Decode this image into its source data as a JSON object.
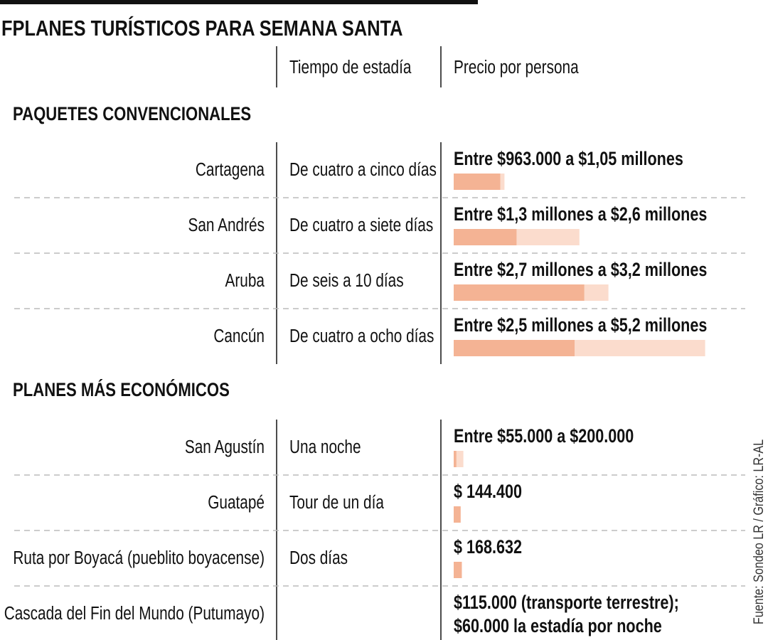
{
  "title": "FPLANES TURÍSTICOS PARA SEMANA SANTA",
  "header": {
    "stay": "Tiempo de estadía",
    "price": "Precio por persona"
  },
  "colors": {
    "low": "#f4b394",
    "high": "#fbdccd"
  },
  "sections": [
    {
      "title": "PAQUETES CONVENCIONALES",
      "rows": [
        {
          "place": "Cartagena",
          "stay": "De cuatro a cinco días",
          "price_label": [
            "Entre  $963.000 a $1,05 millones"
          ],
          "low": 963000,
          "high": 1050000
        },
        {
          "place": "San Andrés",
          "stay": "De cuatro a siete días",
          "price_label": [
            "Entre $1,3 millones a $2,6 millones"
          ],
          "low": 1300000,
          "high": 2600000
        },
        {
          "place": "Aruba",
          "stay": "De seis a 10 días",
          "price_label": [
            "Entre $2,7 millones a $3,2 millones"
          ],
          "low": 2700000,
          "high": 3200000
        },
        {
          "place": "Cancún",
          "stay": "De cuatro a ocho días",
          "price_label": [
            "Entre $2,5 millones a $5,2 millones"
          ],
          "low": 2500000,
          "high": 5200000
        }
      ]
    },
    {
      "title": "PLANES MÁS ECONÓMICOS",
      "rows": [
        {
          "place": "San Agustín",
          "stay": "Una noche",
          "price_label": [
            "Entre $55.000 a $200.000"
          ],
          "low": 55000,
          "high": 200000
        },
        {
          "place": "Guatapé",
          "stay": "Tour de un día",
          "price_label": [
            "$ 144.400"
          ],
          "low": 144400
        },
        {
          "place": "Ruta por Boyacá (pueblito boyacense)",
          "stay": "Dos días",
          "price_label": [
            "$ 168.632"
          ],
          "low": 168632
        },
        {
          "place": "Cascada del Fin del Mundo (Putumayo)",
          "price_label": [
            "$115.000 (transporte terrestre);",
            "$60.000 la estadía por noche"
          ]
        }
      ]
    }
  ],
  "source": "Fuente: Sondeo LR / Gráfico: LR-AL"
}
